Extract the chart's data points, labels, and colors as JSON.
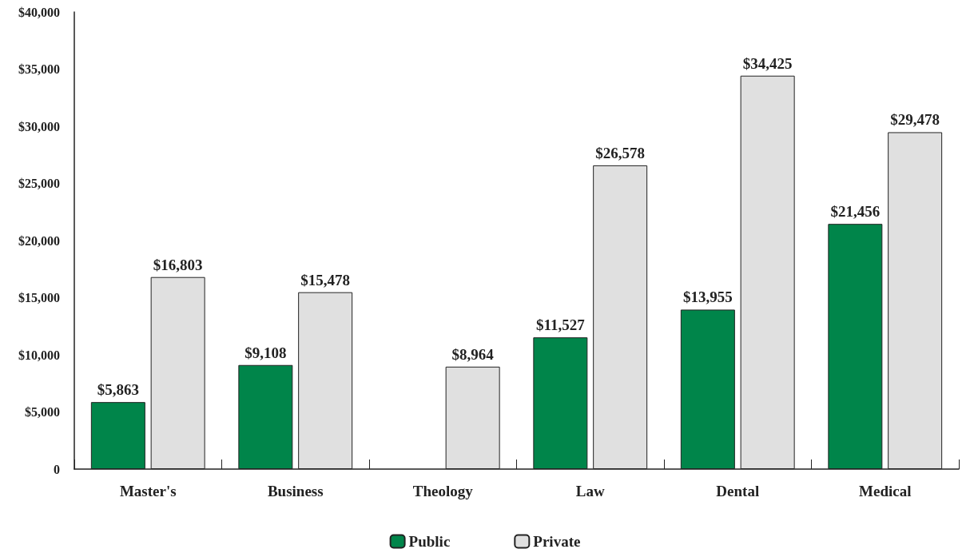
{
  "chart_data": {
    "type": "bar",
    "categories": [
      "Master's",
      "Business",
      "Theology",
      "Law",
      "Dental",
      "Medical"
    ],
    "series": [
      {
        "name": "Public",
        "color": "#00854a",
        "values": [
          5863,
          9108,
          null,
          11527,
          13955,
          21456
        ],
        "value_labels": [
          "$5,863",
          "$9,108",
          null,
          "$11,527",
          "$13,955",
          "$21,456"
        ]
      },
      {
        "name": "Private",
        "color": "#e0e0e0",
        "values": [
          16803,
          15478,
          8964,
          26578,
          34425,
          29478
        ],
        "value_labels": [
          "$16,803",
          "$15,478",
          "$8,964",
          "$26,578",
          "$34,425",
          "$29,478"
        ]
      }
    ],
    "ylim": [
      0,
      40000
    ],
    "yticks": [
      0,
      {
        "value": 5000,
        "label": "$5,000"
      },
      {
        "value": 10000,
        "label": "$10,000"
      },
      {
        "value": 15000,
        "label": "$15,000"
      },
      {
        "value": 20000,
        "label": "$20,000"
      },
      {
        "value": 25000,
        "label": "$25,000"
      },
      {
        "value": 30000,
        "label": "$30,000"
      },
      {
        "value": 35000,
        "label": "$35,000"
      },
      {
        "value": 40000,
        "label": "$40,000"
      }
    ],
    "grid": false,
    "legend": "bottom"
  }
}
